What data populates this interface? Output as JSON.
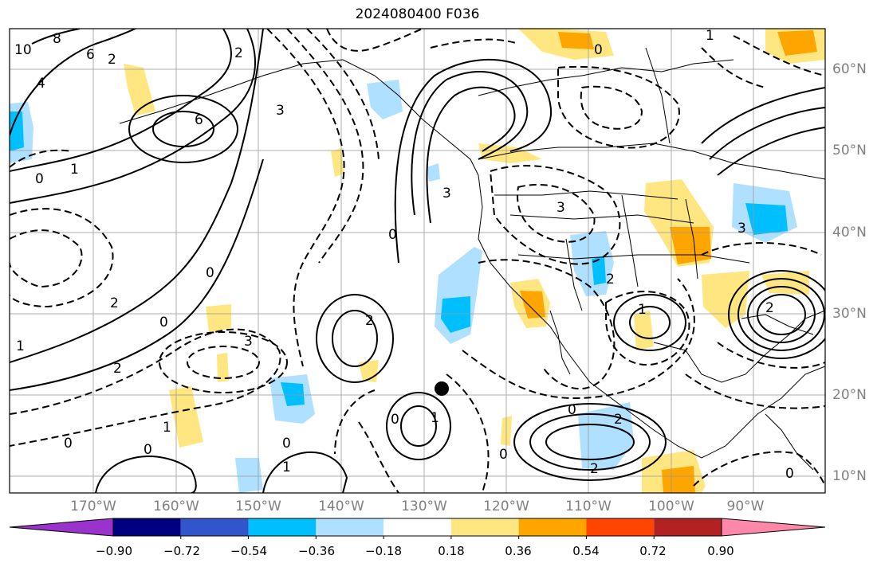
{
  "title": "2024080400 F036",
  "lat_labels": [
    "60°N",
    "50°N",
    "40°N",
    "30°N",
    "20°N",
    "10°N"
  ],
  "lon_labels": [
    "170°W",
    "160°W",
    "150°W",
    "140°W",
    "130°W",
    "120°W",
    "110°W",
    "100°W",
    "90°W"
  ],
  "colorbar": {
    "ticks": [
      "−0.90",
      "−0.72",
      "−0.54",
      "−0.36",
      "−0.18",
      "0.18",
      "0.36",
      "0.54",
      "0.72",
      "0.90"
    ],
    "colors": [
      "#9933cc",
      "#000080",
      "#3355cc",
      "#00bfff",
      "#b0e0ff",
      "#ffffff",
      "#ffe680",
      "#ffa500",
      "#ff4500",
      "#b22222",
      "#ff88aa"
    ]
  },
  "contour_labels": [
    "10",
    "8",
    "6",
    "4",
    "6",
    "2",
    "0",
    "1",
    "3",
    "2",
    "0",
    "1",
    "3",
    "3",
    "0",
    "0",
    "2",
    "2",
    "0",
    "0",
    "2",
    "0",
    "1",
    "0",
    "1",
    "3",
    "2",
    "1",
    "2",
    "0",
    "0",
    "2",
    "0",
    "1",
    "3",
    "2",
    "0",
    "1"
  ]
}
